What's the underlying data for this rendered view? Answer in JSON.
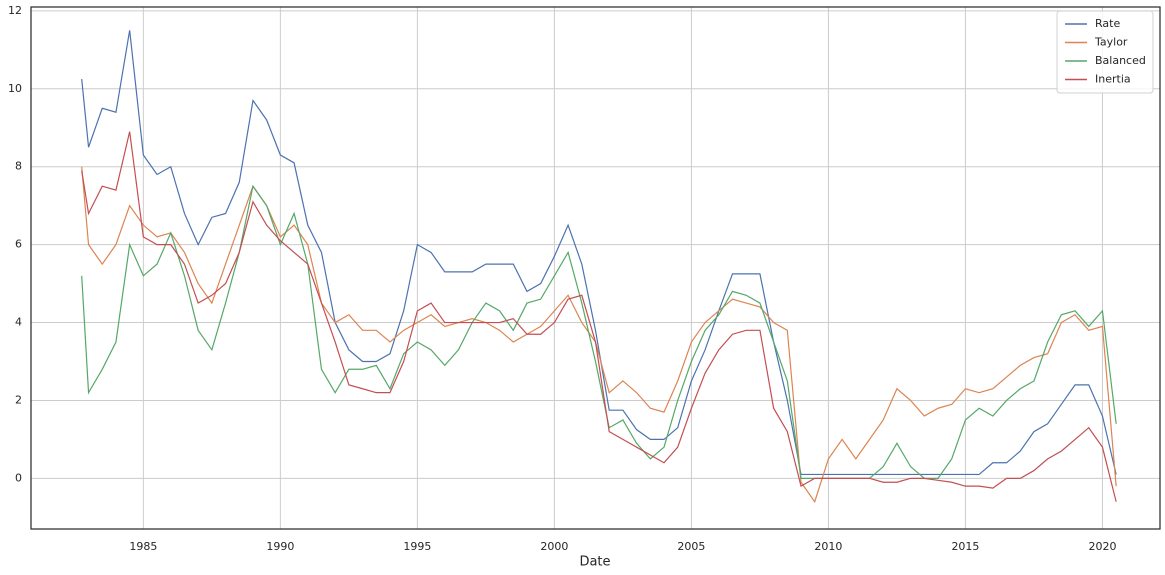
{
  "chart_data": {
    "type": "line",
    "x_label": "Date",
    "x": [
      1982.75,
      1983,
      1983.5,
      1984,
      1984.5,
      1985,
      1985.5,
      1986,
      1986.5,
      1987,
      1987.5,
      1988,
      1988.5,
      1989,
      1989.5,
      1990,
      1990.5,
      1991,
      1991.5,
      1992,
      1992.5,
      1993,
      1993.5,
      1994,
      1994.5,
      1995,
      1995.5,
      1996,
      1996.5,
      1997,
      1997.5,
      1998,
      1998.5,
      1999,
      1999.5,
      2000,
      2000.5,
      2001,
      2001.5,
      2002,
      2002.5,
      2003,
      2003.5,
      2004,
      2004.5,
      2005,
      2005.5,
      2006,
      2006.5,
      2007,
      2007.5,
      2008,
      2008.5,
      2009,
      2009.5,
      2010,
      2010.5,
      2011,
      2011.5,
      2012,
      2012.5,
      2013,
      2013.5,
      2014,
      2014.5,
      2015,
      2015.5,
      2016,
      2016.5,
      2017,
      2017.5,
      2018,
      2018.5,
      2019,
      2019.5,
      2020,
      2020.5
    ],
    "series": [
      {
        "name": "Rate",
        "color": "#4c72b0",
        "values": [
          10.25,
          8.5,
          9.5,
          9.4,
          11.5,
          8.3,
          7.8,
          8.0,
          6.8,
          6.0,
          6.7,
          6.8,
          7.6,
          9.7,
          9.2,
          8.3,
          8.1,
          6.5,
          5.8,
          4.0,
          3.3,
          3.0,
          3.0,
          3.2,
          4.3,
          6.0,
          5.8,
          5.3,
          5.3,
          5.3,
          5.5,
          5.5,
          5.5,
          4.8,
          5.0,
          5.7,
          6.5,
          5.5,
          3.8,
          1.75,
          1.75,
          1.25,
          1.0,
          1.0,
          1.3,
          2.5,
          3.3,
          4.3,
          5.25,
          5.25,
          5.25,
          3.5,
          2.0,
          0.1,
          0.1,
          0.1,
          0.1,
          0.1,
          0.1,
          0.1,
          0.1,
          0.1,
          0.1,
          0.1,
          0.1,
          0.1,
          0.1,
          0.4,
          0.4,
          0.7,
          1.2,
          1.4,
          1.9,
          2.4,
          2.4,
          1.6,
          0.1
        ]
      },
      {
        "name": "Taylor",
        "color": "#dd8452",
        "values": [
          8.0,
          6.0,
          5.5,
          6.0,
          7.0,
          6.5,
          6.2,
          6.3,
          5.8,
          5.0,
          4.5,
          5.5,
          6.5,
          7.5,
          7.0,
          6.2,
          6.5,
          6.0,
          4.5,
          4.0,
          4.2,
          3.8,
          3.8,
          3.5,
          3.8,
          4.0,
          4.2,
          3.9,
          4.0,
          4.1,
          4.0,
          3.8,
          3.5,
          3.7,
          3.9,
          4.3,
          4.7,
          4.0,
          3.5,
          2.2,
          2.5,
          2.2,
          1.8,
          1.7,
          2.5,
          3.5,
          4.0,
          4.3,
          4.6,
          4.5,
          4.4,
          4.0,
          3.8,
          -0.1,
          -0.6,
          0.5,
          1.0,
          0.5,
          1.0,
          1.5,
          2.3,
          2.0,
          1.6,
          1.8,
          1.9,
          2.3,
          2.2,
          2.3,
          2.6,
          2.9,
          3.1,
          3.2,
          4.0,
          4.2,
          3.8,
          3.9,
          -0.2
        ]
      },
      {
        "name": "Balanced",
        "color": "#55a868",
        "values": [
          5.2,
          2.2,
          2.8,
          3.5,
          6.0,
          5.2,
          5.5,
          6.3,
          5.2,
          3.8,
          3.3,
          4.5,
          5.8,
          7.5,
          7.0,
          6.0,
          6.8,
          5.5,
          2.8,
          2.2,
          2.8,
          2.8,
          2.9,
          2.3,
          3.2,
          3.5,
          3.3,
          2.9,
          3.3,
          4.0,
          4.5,
          4.3,
          3.8,
          4.5,
          4.6,
          5.2,
          5.8,
          4.5,
          3.0,
          1.3,
          1.5,
          0.9,
          0.5,
          0.8,
          2.0,
          3.0,
          3.8,
          4.2,
          4.8,
          4.7,
          4.5,
          3.5,
          2.5,
          0.0,
          0.0,
          0.0,
          0.0,
          0.0,
          0.0,
          0.3,
          0.9,
          0.3,
          0.0,
          0.0,
          0.5,
          1.5,
          1.8,
          1.6,
          2.0,
          2.3,
          2.5,
          3.5,
          4.2,
          4.3,
          3.9,
          4.3,
          1.4
        ]
      },
      {
        "name": "Inertia",
        "color": "#c44e52",
        "values": [
          7.9,
          6.8,
          7.5,
          7.4,
          8.9,
          6.2,
          6.0,
          6.0,
          5.5,
          4.5,
          4.7,
          5.0,
          5.8,
          7.1,
          6.5,
          6.1,
          5.8,
          5.5,
          4.5,
          3.5,
          2.4,
          2.3,
          2.2,
          2.2,
          3.0,
          4.3,
          4.5,
          4.0,
          4.0,
          4.0,
          4.0,
          4.0,
          4.1,
          3.7,
          3.7,
          4.0,
          4.6,
          4.7,
          3.5,
          1.2,
          1.0,
          0.8,
          0.6,
          0.4,
          0.8,
          1.8,
          2.7,
          3.3,
          3.7,
          3.8,
          3.8,
          1.8,
          1.2,
          -0.2,
          0.0,
          0.0,
          0.0,
          0.0,
          0.0,
          -0.1,
          -0.1,
          0.0,
          0.0,
          -0.05,
          -0.1,
          -0.2,
          -0.2,
          -0.25,
          0.0,
          0.0,
          0.2,
          0.5,
          0.7,
          1.0,
          1.3,
          0.8,
          -0.6
        ]
      }
    ],
    "xlim": [
      1980.9,
      2022.1
    ],
    "xticks": [
      1985,
      1990,
      1995,
      2000,
      2005,
      2010,
      2015,
      2020
    ],
    "ylim": [
      -1.3,
      12.1
    ],
    "yticks": [
      0,
      2,
      4,
      6,
      8,
      10,
      12
    ],
    "grid": true,
    "legend": "upper right"
  }
}
